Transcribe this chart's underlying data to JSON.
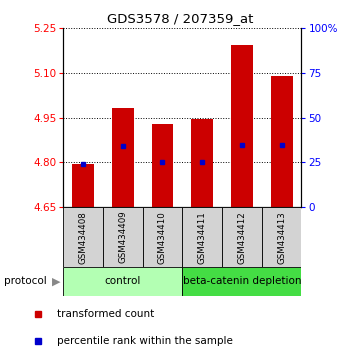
{
  "title": "GDS3578 / 207359_at",
  "samples": [
    "GSM434408",
    "GSM434409",
    "GSM434410",
    "GSM434411",
    "GSM434412",
    "GSM434413"
  ],
  "red_bar_tops": [
    4.793,
    4.984,
    4.928,
    4.944,
    5.193,
    5.09
  ],
  "blue_markers": [
    4.793,
    4.855,
    4.802,
    4.802,
    4.857,
    4.857
  ],
  "bar_bottom": 4.65,
  "ylim_left": [
    4.65,
    5.25
  ],
  "ylim_right": [
    0,
    100
  ],
  "yticks_left": [
    4.65,
    4.8,
    4.95,
    5.1,
    5.25
  ],
  "yticks_right": [
    0,
    25,
    50,
    75,
    100
  ],
  "ytick_labels_right": [
    "0",
    "25",
    "50",
    "75",
    "100%"
  ],
  "red_color": "#cc0000",
  "blue_color": "#0000cc",
  "bar_width": 0.55,
  "sample_bg_color": "#d3d3d3",
  "control_bg": "#b3ffb3",
  "depletion_bg": "#44dd44",
  "legend_red": "transformed count",
  "legend_blue": "percentile rank within the sample",
  "protocol_label": "protocol"
}
